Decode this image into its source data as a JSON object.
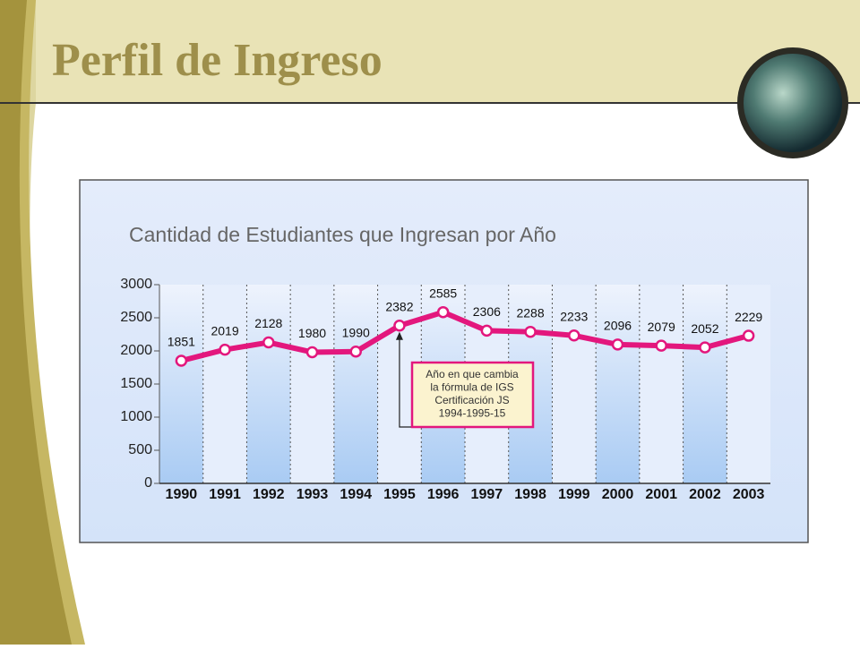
{
  "slide": {
    "title": "Perfil de Ingreso"
  },
  "chart_data": {
    "type": "line",
    "title": "Cantidad de Estudiantes que Ingresan por Año",
    "categories": [
      "1990",
      "1991",
      "1992",
      "1993",
      "1994",
      "1995",
      "1996",
      "1997",
      "1998",
      "1999",
      "2000",
      "2001",
      "2002",
      "2003"
    ],
    "values": [
      1851,
      2019,
      2128,
      1980,
      1990,
      2382,
      2585,
      2306,
      2288,
      2233,
      2096,
      2079,
      2052,
      2229
    ],
    "color": "#e3177d",
    "ylim": [
      0,
      3000
    ],
    "yticks": [
      0,
      500,
      1000,
      1500,
      2000,
      2500,
      3000
    ],
    "annotation": [
      "Año en que cambia",
      "la fórmula de IGS",
      "Certificación JS",
      "1994-1995-15"
    ]
  }
}
